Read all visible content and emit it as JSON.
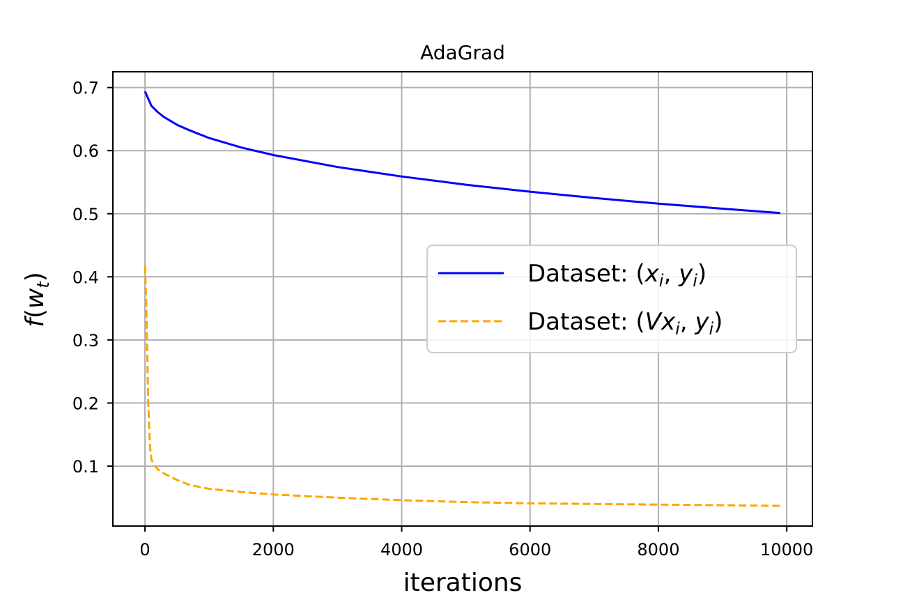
{
  "chart_data": {
    "type": "line",
    "title": "AdaGrad",
    "xlabel": "iterations",
    "ylabel": "f(w_t)",
    "ylabel_parts": {
      "f": "f",
      "open": "(",
      "w": "w",
      "sub": "t",
      "close": ")"
    },
    "xlim": [
      -500,
      10400
    ],
    "ylim": [
      0.005,
      0.725
    ],
    "xticks": [
      0,
      2000,
      4000,
      6000,
      8000,
      10000
    ],
    "xtick_labels": [
      "0",
      "2000",
      "4000",
      "6000",
      "8000",
      "10000"
    ],
    "yticks": [
      0.1,
      0.2,
      0.3,
      0.4,
      0.5,
      0.6,
      0.7
    ],
    "ytick_labels": [
      "0.1",
      "0.2",
      "0.3",
      "0.4",
      "0.5",
      "0.6",
      "0.7"
    ],
    "grid": true,
    "legend_position": "center-right",
    "series": [
      {
        "name": "Dataset: (x_i, y_i)",
        "color": "#0000ff",
        "style": "solid",
        "x": [
          0,
          100,
          200,
          300,
          500,
          700,
          1000,
          1500,
          2000,
          3000,
          4000,
          5000,
          6000,
          7000,
          8000,
          9000,
          9900
        ],
        "y": [
          0.694,
          0.671,
          0.661,
          0.653,
          0.641,
          0.632,
          0.62,
          0.605,
          0.593,
          0.574,
          0.559,
          0.546,
          0.535,
          0.525,
          0.516,
          0.508,
          0.501
        ]
      },
      {
        "name": "Dataset: (Vx_i, y_i)",
        "color": "#ffa500",
        "style": "dashed",
        "x": [
          0,
          20,
          50,
          80,
          100,
          150,
          200,
          300,
          500,
          700,
          1000,
          1500,
          2000,
          3000,
          4000,
          5000,
          6000,
          7000,
          8000,
          9000,
          9900
        ],
        "y": [
          0.418,
          0.36,
          0.2,
          0.13,
          0.11,
          0.101,
          0.095,
          0.088,
          0.078,
          0.07,
          0.064,
          0.059,
          0.055,
          0.05,
          0.046,
          0.043,
          0.041,
          0.04,
          0.039,
          0.038,
          0.037
        ]
      }
    ],
    "legend": [
      {
        "prefix": "Dataset: (",
        "v": "",
        "x": "x",
        "i1": "i",
        "comma": ", ",
        "y": "y",
        "i2": "i",
        "close": ")"
      },
      {
        "prefix": "Dataset: (",
        "v": "V",
        "x": "x",
        "i1": "i",
        "comma": ", ",
        "y": "y",
        "i2": "i",
        "close": ")"
      }
    ]
  }
}
